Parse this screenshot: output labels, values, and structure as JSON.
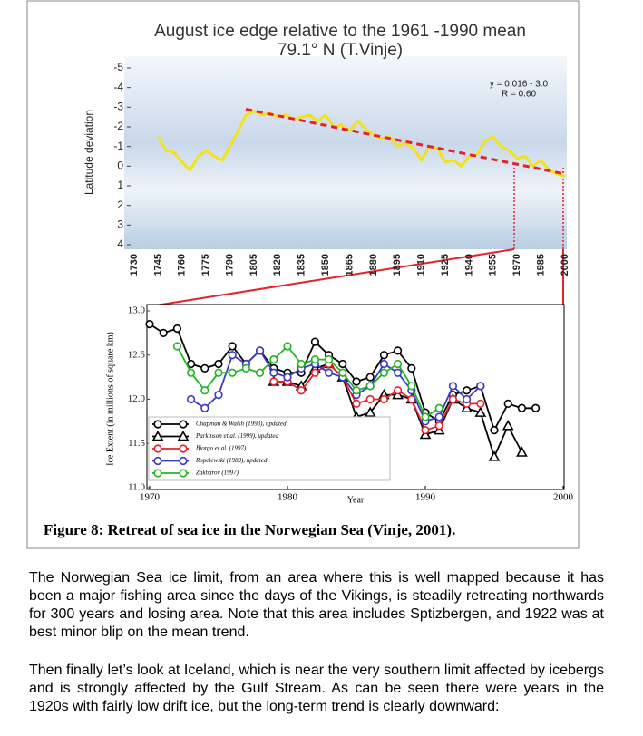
{
  "chart_data": [
    {
      "type": "line",
      "title": "August ice edge relative to the 1961 -1990 mean",
      "subtitle": "79.1° N (T.Vinje)",
      "ylabel": "Latitude deviation",
      "xlim": [
        1730,
        2000
      ],
      "xticks": [
        1730,
        1745,
        1760,
        1775,
        1790,
        1805,
        1820,
        1835,
        1850,
        1865,
        1880,
        1895,
        1910,
        1925,
        1940,
        1955,
        1970,
        1985,
        2000
      ],
      "ylim": [
        -5,
        4
      ],
      "yticks": [
        -5,
        -4,
        -3,
        -2,
        -1,
        0,
        1,
        2,
        3,
        4
      ],
      "y_inverted": true,
      "annotations": [
        "y = 0.016 - 3.0",
        "R = 0.60"
      ],
      "series": [
        {
          "color": "#f2e21c",
          "style": "solid",
          "x": [
            1745,
            1750,
            1755,
            1760,
            1765,
            1770,
            1775,
            1780,
            1785,
            1790,
            1795,
            1800,
            1805,
            1810,
            1815,
            1820,
            1825,
            1830,
            1835,
            1840,
            1845,
            1850,
            1855,
            1860,
            1865,
            1870,
            1875,
            1880,
            1885,
            1890,
            1895,
            1900,
            1905,
            1910,
            1915,
            1920,
            1925,
            1930,
            1935,
            1940,
            1945,
            1950,
            1955,
            1960,
            1965,
            1970,
            1975,
            1980,
            1985,
            1990,
            1995,
            2000
          ],
          "values": [
            -1.5,
            -0.8,
            -0.7,
            -0.2,
            0.2,
            -0.5,
            -0.8,
            -0.5,
            -0.3,
            -1.0,
            -1.8,
            -2.6,
            -2.8,
            -2.6,
            -2.7,
            -2.5,
            -2.6,
            -2.4,
            -2.5,
            -2.6,
            -2.3,
            -2.6,
            -2.0,
            -2.1,
            -1.8,
            -2.3,
            -1.9,
            -1.6,
            -1.4,
            -1.5,
            -1.0,
            -1.2,
            -0.9,
            -0.3,
            -1.0,
            -0.9,
            -0.2,
            -0.3,
            0.0,
            -0.5,
            -0.6,
            -1.3,
            -1.5,
            -1.0,
            -0.8,
            -0.4,
            -0.5,
            0.0,
            -0.3,
            0.2,
            0.4,
            0.5
          ]
        },
        {
          "color": "#e8202a",
          "style": "dashed",
          "x": [
            1800,
            2000
          ],
          "values": [
            -2.9,
            0.4
          ]
        }
      ]
    },
    {
      "type": "line",
      "xlabel": "Year",
      "ylabel": "Ice Extent (in millions of square km)",
      "xlim": [
        1970,
        2000
      ],
      "xticks": [
        1970,
        1980,
        1990,
        2000
      ],
      "ylim": [
        11,
        13
      ],
      "yticks": [
        {
          "value": 11,
          "label": "11.0"
        },
        11.5,
        {
          "value": 12,
          "label": "12.0"
        },
        12.5,
        {
          "value": 13,
          "label": "13.0"
        }
      ],
      "legend": "lower left",
      "series": [
        {
          "name": "Chapman & Walsh (1993), updated",
          "color": "#000000",
          "marker": "circle",
          "x": [
            1970,
            1971,
            1972,
            1973,
            1974,
            1975,
            1976,
            1977,
            1978,
            1979,
            1980,
            1981,
            1982,
            1983,
            1984,
            1985,
            1986,
            1987,
            1988,
            1989,
            1990,
            1991,
            1992,
            1993,
            1994,
            1995,
            1996,
            1997,
            1998
          ],
          "values": [
            12.85,
            12.75,
            12.8,
            12.4,
            12.35,
            12.4,
            12.6,
            12.4,
            12.55,
            12.35,
            12.3,
            12.3,
            12.65,
            12.5,
            12.4,
            12.2,
            12.25,
            12.5,
            12.55,
            12.35,
            11.85,
            11.75,
            12.05,
            12.1,
            12.15,
            11.65,
            11.95,
            11.9,
            11.9
          ]
        },
        {
          "name": "Parkinson et al. (1999), updated",
          "color": "#000000",
          "marker": "triangle",
          "x": [
            1979,
            1980,
            1981,
            1982,
            1983,
            1984,
            1985,
            1986,
            1987,
            1988,
            1989,
            1990,
            1991,
            1992,
            1993,
            1994,
            1995,
            1996,
            1997
          ],
          "values": [
            12.2,
            12.2,
            12.15,
            12.35,
            12.4,
            12.25,
            11.8,
            11.85,
            12.05,
            12.05,
            12.0,
            11.6,
            11.65,
            12.0,
            11.9,
            11.85,
            11.35,
            11.7,
            11.4
          ]
        },
        {
          "name": "Bjorgo et al. (1997)",
          "color": "#e8202a",
          "marker": "circle",
          "x": [
            1979,
            1980,
            1981,
            1982,
            1983,
            1984,
            1985,
            1986,
            1987,
            1988,
            1989,
            1990,
            1991,
            1992,
            1993,
            1994
          ],
          "values": [
            12.2,
            12.2,
            12.1,
            12.3,
            12.4,
            12.25,
            11.95,
            12.0,
            12.0,
            12.1,
            12.0,
            11.65,
            11.7,
            12.0,
            11.95,
            11.95
          ]
        },
        {
          "name": "Ropelewski (1983), updated",
          "color": "#3a3ac8",
          "marker": "circle",
          "x": [
            1973,
            1974,
            1975,
            1976,
            1977,
            1978,
            1979,
            1980,
            1981,
            1982,
            1983,
            1984,
            1985,
            1986,
            1987,
            1988,
            1989,
            1990,
            1991,
            1992,
            1993,
            1994
          ],
          "values": [
            12.0,
            11.9,
            12.05,
            12.5,
            12.4,
            12.55,
            12.3,
            12.25,
            12.35,
            12.4,
            12.3,
            12.25,
            12.05,
            12.15,
            12.4,
            12.3,
            12.1,
            11.75,
            11.8,
            12.15,
            12.0,
            12.15
          ]
        },
        {
          "name": "Zakharov (1997)",
          "color": "#22b422",
          "marker": "circle",
          "x": [
            1972,
            1973,
            1974,
            1975,
            1976,
            1977,
            1978,
            1979,
            1980,
            1981,
            1982,
            1983,
            1984,
            1985,
            1986,
            1987,
            1988,
            1989,
            1990,
            1991
          ],
          "values": [
            12.6,
            12.3,
            12.1,
            12.3,
            12.3,
            12.35,
            12.3,
            12.45,
            12.6,
            12.4,
            12.45,
            12.45,
            12.3,
            12.1,
            12.15,
            12.3,
            12.4,
            12.15,
            11.8,
            11.9
          ]
        }
      ]
    }
  ],
  "caption": "Figure 8: Retreat of sea ice in the Norwegian Sea (Vinje, 2001).",
  "paragraphs": [
    "The Norwegian Sea ice limit, from an area where this is well mapped because it has been a major fishing area since the days of the Vikings, is steadily retreating northwards for 300 years and losing area. Note that this area includes Sptizbergen, and 1922 was at best minor blip on the mean trend.",
    "Then finally let’s look at Iceland, which is near the very southern limit affected by icebergs and is strongly affected by the Gulf Stream. As can be seen there were years in the 1920s with fairly low drift ice, but the long-term trend is clearly downward:"
  ]
}
